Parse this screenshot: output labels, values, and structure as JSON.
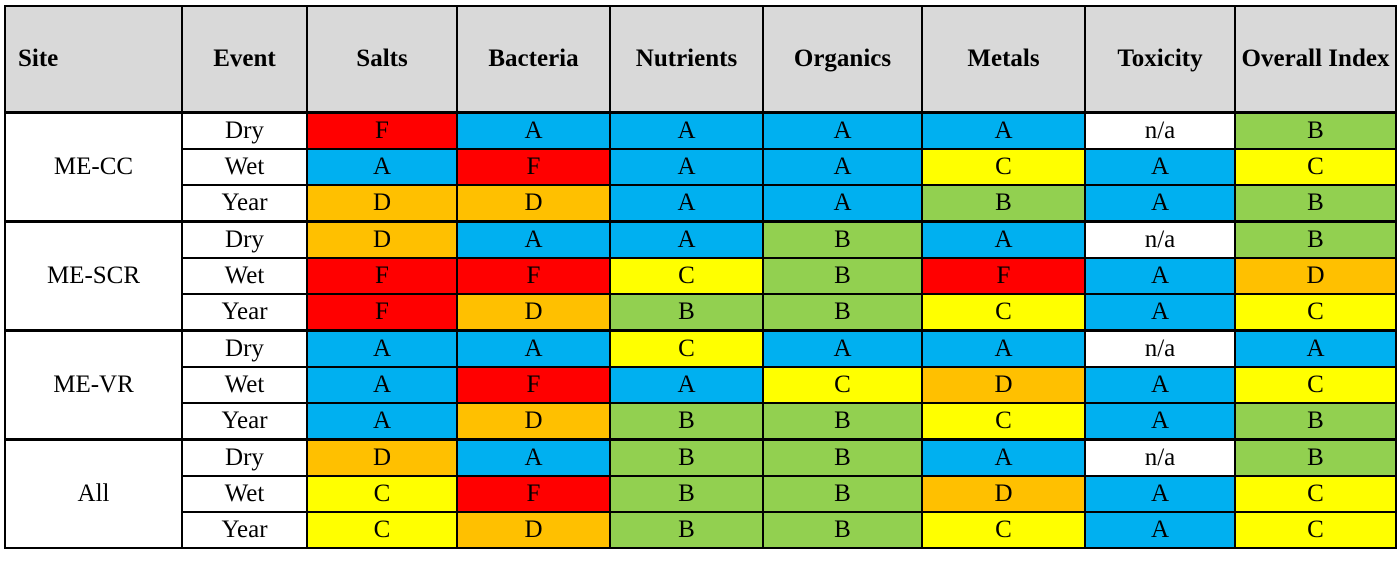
{
  "colors": {
    "header_bg": "#d9d9d9",
    "grade_A": "#00b0f0",
    "grade_B": "#92d050",
    "grade_C": "#ffff00",
    "grade_D": "#ffc000",
    "grade_F": "#ff0000",
    "grade_na": "#ffffff"
  },
  "table": {
    "headers": [
      "Site",
      "Event",
      "Salts",
      "Bacteria",
      "Nutrients",
      "Organics",
      "Metals",
      "Toxicity",
      "Overall Index"
    ],
    "groups": [
      {
        "site": "ME-CC",
        "rows": [
          {
            "event": "Dry",
            "grades": [
              "F",
              "A",
              "A",
              "A",
              "A",
              "n/a",
              "B"
            ]
          },
          {
            "event": "Wet",
            "grades": [
              "A",
              "F",
              "A",
              "A",
              "C",
              "A",
              "C"
            ]
          },
          {
            "event": "Year",
            "grades": [
              "D",
              "D",
              "A",
              "A",
              "B",
              "A",
              "B"
            ]
          }
        ]
      },
      {
        "site": "ME-SCR",
        "rows": [
          {
            "event": "Dry",
            "grades": [
              "D",
              "A",
              "A",
              "B",
              "A",
              "n/a",
              "B"
            ]
          },
          {
            "event": "Wet",
            "grades": [
              "F",
              "F",
              "C",
              "B",
              "F",
              "A",
              "D"
            ]
          },
          {
            "event": "Year",
            "grades": [
              "F",
              "D",
              "B",
              "B",
              "C",
              "A",
              "C"
            ]
          }
        ]
      },
      {
        "site": "ME-VR",
        "rows": [
          {
            "event": "Dry",
            "grades": [
              "A",
              "A",
              "C",
              "A",
              "A",
              "n/a",
              "A"
            ]
          },
          {
            "event": "Wet",
            "grades": [
              "A",
              "F",
              "A",
              "C",
              "D",
              "A",
              "C"
            ]
          },
          {
            "event": "Year",
            "grades": [
              "A",
              "D",
              "B",
              "B",
              "C",
              "A",
              "B"
            ]
          }
        ]
      },
      {
        "site": "All",
        "rows": [
          {
            "event": "Dry",
            "grades": [
              "D",
              "A",
              "B",
              "B",
              "A",
              "n/a",
              "B"
            ]
          },
          {
            "event": "Wet",
            "grades": [
              "C",
              "F",
              "B",
              "B",
              "D",
              "A",
              "C"
            ]
          },
          {
            "event": "Year",
            "grades": [
              "C",
              "D",
              "B",
              "B",
              "C",
              "A",
              "C"
            ]
          }
        ]
      }
    ]
  }
}
